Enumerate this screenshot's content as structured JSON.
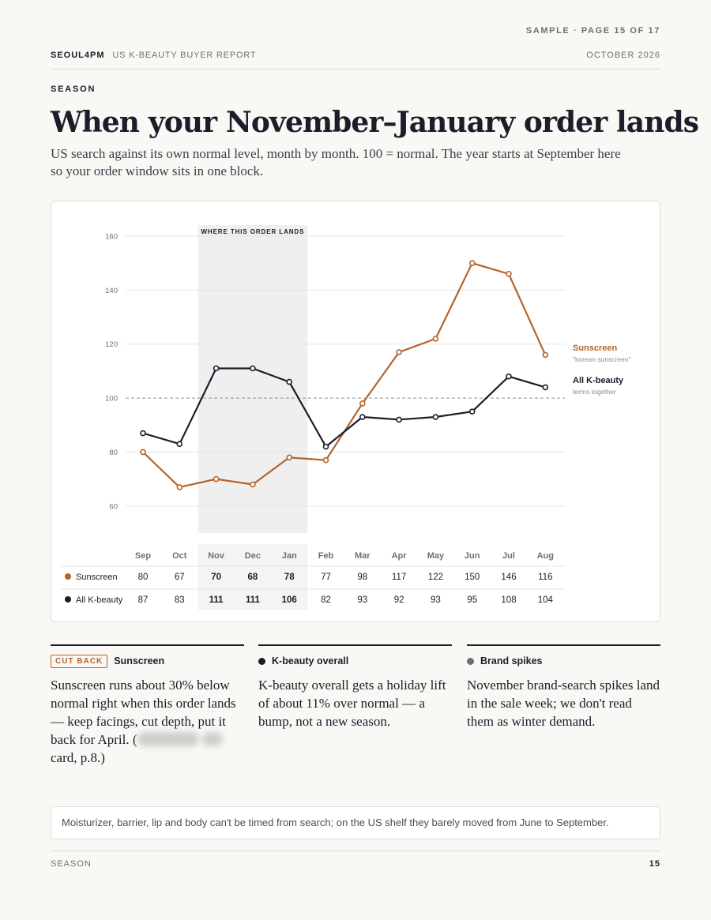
{
  "header": {
    "sample": "SAMPLE · PAGE 15 OF 17",
    "brand": "SEOUL4PM",
    "report": "US K-BEAUTY BUYER REPORT",
    "date": "OCTOBER 2026"
  },
  "kicker": "SEASON",
  "headline": "When your November–January order lands",
  "deck": "US search against its own normal level, month by month. 100 = normal. The year starts at September here so your order window sits in one block.",
  "chart_data": {
    "type": "line",
    "x": [
      "Sep",
      "Oct",
      "Nov",
      "Dec",
      "Jan",
      "Feb",
      "Mar",
      "Apr",
      "May",
      "Jun",
      "Jul",
      "Aug"
    ],
    "ylim": [
      50,
      160
    ],
    "yticks": [
      60,
      80,
      100,
      120,
      140,
      160
    ],
    "reference_line": 100,
    "grid": true,
    "highlight": {
      "label": "WHERE THIS ORDER LANDS",
      "from": "Nov",
      "to": "Jan"
    },
    "series": [
      {
        "name": "Sunscreen",
        "note": "\"korean sunscreen\"",
        "color": "#b5642a",
        "values": [
          80,
          67,
          70,
          68,
          78,
          77,
          98,
          117,
          122,
          150,
          146,
          116
        ]
      },
      {
        "name": "All K-beauty",
        "note": "terms together",
        "color": "#1b1d2a",
        "values": [
          87,
          83,
          111,
          111,
          106,
          82,
          93,
          92,
          93,
          95,
          108,
          104
        ]
      }
    ]
  },
  "columns": [
    {
      "badge": "CUT BACK",
      "title": "Sunscreen",
      "body": "Sunscreen runs about 30% below normal right when this order lands — keep facings, cut depth, put it back for April. (",
      "body_end": " card, p.8.)"
    },
    {
      "title": "K-beauty overall",
      "dot_color": "#1b1d2a",
      "body": "K-beauty overall gets a holiday lift of about 11% over normal — a bump, not a new season."
    },
    {
      "title": "Brand spikes",
      "dot_color": "#6e6f76",
      "body": "November brand-search spikes land in the sale week; we don't read them as winter demand."
    }
  ],
  "note": "Moisturizer, barrier, lip and body can't be timed from search; on the US shelf they barely moved from June to September.",
  "footer": {
    "section": "SEASON",
    "page": "15"
  }
}
